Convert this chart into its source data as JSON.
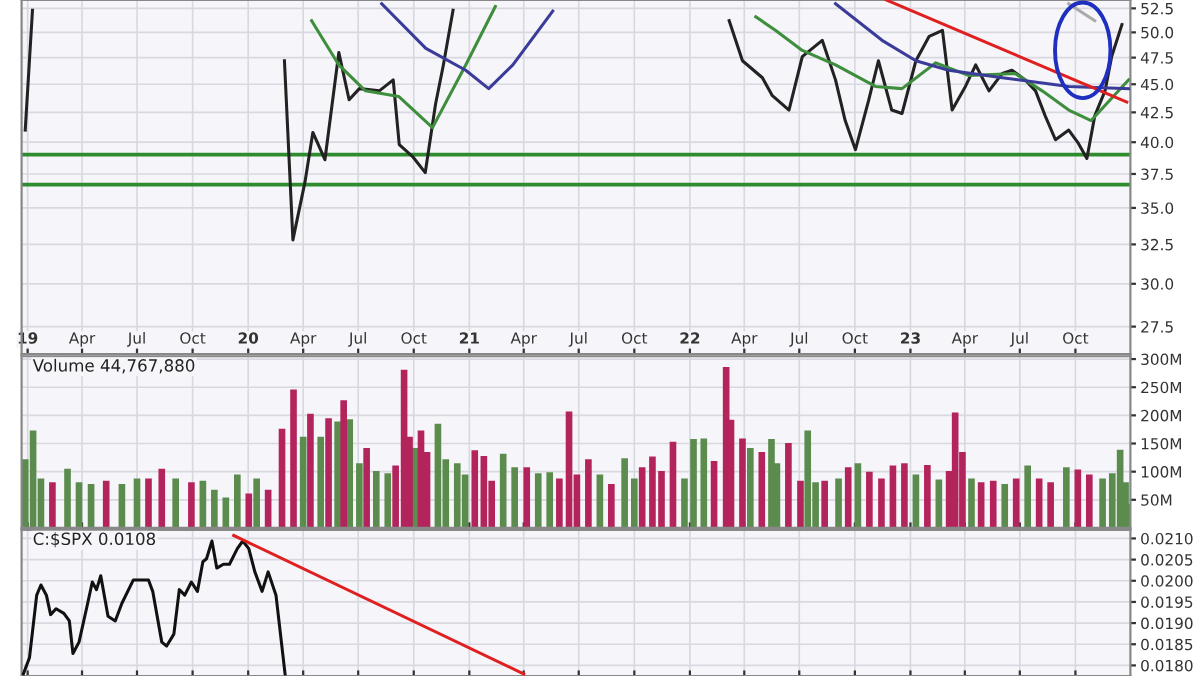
{
  "chart_data": [
    {
      "type": "line",
      "log": "y",
      "grid": true,
      "xlim": [
        "2018-12-22",
        "2023-12-31"
      ],
      "ylim": [
        26.0,
        53.4
      ],
      "xticks": [
        {
          "value": "2019-01-01",
          "label": "19"
        },
        {
          "value": "2019-04-01",
          "label": "Apr"
        },
        {
          "value": "2019-07-01",
          "label": "Jul"
        },
        {
          "value": "2019-10-01",
          "label": "Oct"
        },
        {
          "value": "2020-01-01",
          "label": "20"
        },
        {
          "value": "2020-04-01",
          "label": "Apr"
        },
        {
          "value": "2020-07-01",
          "label": "Jul"
        },
        {
          "value": "2020-10-01",
          "label": "Oct"
        },
        {
          "value": "2021-01-01",
          "label": "21"
        },
        {
          "value": "2021-04-01",
          "label": "Apr"
        },
        {
          "value": "2021-07-01",
          "label": "Jul"
        },
        {
          "value": "2021-10-01",
          "label": "Oct"
        },
        {
          "value": "2022-01-01",
          "label": "22"
        },
        {
          "value": "2022-04-01",
          "label": "Apr"
        },
        {
          "value": "2022-07-01",
          "label": "Jul"
        },
        {
          "value": "2022-10-01",
          "label": "Oct"
        },
        {
          "value": "2023-01-01",
          "label": "23"
        },
        {
          "value": "2023-04-01",
          "label": "Apr"
        },
        {
          "value": "2023-07-01",
          "label": "Jul"
        },
        {
          "value": "2023-10-01",
          "label": "Oct"
        }
      ],
      "yticks": [
        {
          "value": 27.5,
          "label": "27.5"
        },
        {
          "value": 30,
          "label": "30.0"
        },
        {
          "value": 32.5,
          "label": "32.5"
        },
        {
          "value": 35,
          "label": "35.0"
        },
        {
          "value": 37.5,
          "label": "37.5"
        },
        {
          "value": 40,
          "label": "40.0"
        },
        {
          "value": 42.5,
          "label": "42.5"
        },
        {
          "value": 45,
          "label": "45.0"
        },
        {
          "value": 47.5,
          "label": "47.5"
        },
        {
          "value": 50,
          "label": "50.0"
        },
        {
          "value": 52.5,
          "label": "52.5"
        }
      ],
      "ref_lines": [
        {
          "axis": "y",
          "value": 39.0,
          "color": "#2e8b2e"
        },
        {
          "axis": "y",
          "value": 36.7,
          "color": "#2e8b2e"
        }
      ],
      "series": [
        {
          "color": "#222222",
          "x": [
            "2018-12-28",
            "2019-01-09",
            "2019-02-01",
            "2020-03-01",
            "2020-03-15",
            "2020-04-04",
            "2020-04-17",
            "2020-05-07",
            "2020-05-30",
            "2020-06-16",
            "2020-07-03",
            "2020-08-05",
            "2020-08-28",
            "2020-09-07",
            "2020-09-30",
            "2020-10-20",
            "2020-11-06",
            "2020-11-19",
            "2020-12-05",
            "2020-12-20",
            "2022-03-07",
            "2022-03-29",
            "2022-05-01",
            "2022-05-17",
            "2022-06-14",
            "2022-07-06",
            "2022-08-08",
            "2022-08-30",
            "2022-09-15",
            "2022-10-02",
            "2022-10-24",
            "2022-11-09",
            "2022-12-01",
            "2022-12-18",
            "2023-01-10",
            "2023-02-01",
            "2023-02-23",
            "2023-03-11",
            "2023-04-02",
            "2023-04-19",
            "2023-05-11",
            "2023-06-02",
            "2023-06-18",
            "2023-07-10",
            "2023-07-27",
            "2023-08-12",
            "2023-08-29",
            "2023-09-20",
            "2023-10-06",
            "2023-10-20",
            "2023-11-02",
            "2023-11-19",
            "2023-11-30",
            "2023-12-17"
          ],
          "values": [
            41.0,
            52.3,
            null,
            47.2,
            32.8,
            36.9,
            40.8,
            38.6,
            48.0,
            43.6,
            44.6,
            44.4,
            45.4,
            39.8,
            38.8,
            37.6,
            43.2,
            46.8,
            52.3,
            null,
            51.2,
            47.2,
            45.6,
            44.0,
            42.7,
            47.6,
            49.2,
            45.4,
            41.8,
            39.4,
            43.6,
            47.2,
            42.7,
            42.4,
            47.2,
            49.6,
            50.2,
            42.7,
            44.8,
            46.8,
            44.4,
            46.0,
            46.3,
            45.4,
            44.4,
            42.2,
            40.2,
            41.0,
            39.9,
            38.7,
            42.2,
            44.4,
            47.6,
            50.8
          ]
        },
        {
          "color": "#3e8e3e",
          "x": [
            "2020-04-15",
            "2020-05-30",
            "2020-07-13",
            "2020-09-06",
            "2020-11-01",
            "2020-12-26",
            "2021-02-13",
            "2021-03-01",
            "2022-04-20",
            "2022-05-23",
            "2022-07-06",
            "2022-08-30",
            "2022-11-04",
            "2022-12-18",
            "2023-02-12",
            "2023-04-08",
            "2023-06-23",
            "2023-08-07",
            "2023-09-20",
            "2023-10-27",
            "2023-12-28"
          ],
          "values": [
            51.2,
            46.8,
            44.4,
            43.9,
            41.2,
            46.8,
            52.7,
            null,
            51.6,
            50.2,
            48.2,
            46.8,
            44.8,
            44.6,
            47.0,
            45.8,
            46.0,
            44.4,
            42.7,
            41.8,
            45.4
          ]
        },
        {
          "color": "#3b3b9a",
          "x": [
            "2020-08-09",
            "2020-10-21",
            "2020-12-26",
            "2021-02-02",
            "2021-03-14",
            "2021-05-19",
            "2021-06-01",
            "2022-08-30",
            "2022-11-15",
            "2023-01-10",
            "2023-03-05",
            "2023-06-02",
            "2023-09-20",
            "2023-12-28"
          ],
          "values": [
            53.0,
            48.4,
            46.3,
            44.6,
            46.8,
            52.2,
            null,
            53.0,
            49.2,
            47.2,
            46.3,
            45.6,
            44.8,
            44.6
          ]
        },
        {
          "color": "#aaaaaa",
          "x": [
            "2023-09-20",
            "2023-11-02"
          ],
          "values": [
            53.0,
            51.2
          ]
        },
        {
          "color": "#e02020",
          "x": [
            "2022-11-22",
            "2023-12-25"
          ],
          "values": [
            53.4,
            43.4
          ]
        }
      ]
    },
    {
      "type": "bar",
      "grid": true,
      "tick_labels": "y",
      "xlim": [
        "2018-12-22",
        "2023-12-31"
      ],
      "ylim": [
        0,
        305
      ],
      "xticks": [
        {
          "value": "2019-01-01",
          "label": null
        },
        {
          "value": "2019-04-01",
          "label": null
        },
        {
          "value": "2019-07-01",
          "label": null
        },
        {
          "value": "2019-10-01",
          "label": null
        },
        {
          "value": "2020-01-01",
          "label": null
        },
        {
          "value": "2020-04-01",
          "label": null
        },
        {
          "value": "2020-07-01",
          "label": null
        },
        {
          "value": "2020-10-01",
          "label": null
        },
        {
          "value": "2021-01-01",
          "label": null
        },
        {
          "value": "2021-04-01",
          "label": null
        },
        {
          "value": "2021-07-01",
          "label": null
        },
        {
          "value": "2021-10-01",
          "label": null
        },
        {
          "value": "2022-01-01",
          "label": null
        },
        {
          "value": "2022-04-01",
          "label": null
        },
        {
          "value": "2022-07-01",
          "label": null
        },
        {
          "value": "2022-10-01",
          "label": null
        },
        {
          "value": "2023-01-01",
          "label": null
        },
        {
          "value": "2023-04-01",
          "label": null
        },
        {
          "value": "2023-07-01",
          "label": null
        },
        {
          "value": "2023-10-01",
          "label": null
        }
      ],
      "yticks": [
        {
          "value": 50,
          "label": "50M"
        },
        {
          "value": 100,
          "label": "100M"
        },
        {
          "value": 150,
          "label": "150M"
        },
        {
          "value": 200,
          "label": "200M"
        },
        {
          "value": 250,
          "label": "250M"
        },
        {
          "value": 300,
          "label": "300M"
        }
      ],
      "annotations": [
        "Volume 44,767,880"
      ],
      "series": [
        {
          "color": "#5b8c4e",
          "x": [
            "2018-12-28",
            "2019-01-10",
            "2019-01-23",
            "2019-03-08",
            "2019-03-27",
            "2019-04-16",
            "2019-06-06",
            "2019-07-01",
            "2019-09-03",
            "2019-10-18",
            "2019-11-06",
            "2019-11-25",
            "2019-12-14",
            "2020-01-15",
            "2020-04-01",
            "2020-04-30",
            "2020-05-28",
            "2020-06-17",
            "2020-07-03",
            "2020-07-31",
            "2020-08-19",
            "2020-10-03",
            "2020-11-10",
            "2020-11-23",
            "2020-12-12",
            "2020-12-25",
            "2021-02-26",
            "2021-03-17",
            "2021-04-25",
            "2021-05-14",
            "2021-08-05",
            "2021-09-15",
            "2021-10-01",
            "2021-12-23",
            "2022-01-07",
            "2022-01-24",
            "2022-04-11",
            "2022-05-16",
            "2022-05-25",
            "2022-07-15",
            "2022-07-28",
            "2022-09-04",
            "2022-10-06",
            "2023-01-10",
            "2023-02-17",
            "2023-04-12",
            "2023-06-06",
            "2023-07-14",
            "2023-09-16",
            "2023-11-15",
            "2023-12-01",
            "2023-12-14",
            "2023-12-23",
            "2023-12-29"
          ],
          "values": [
            122,
            173,
            88,
            105,
            81,
            78,
            78,
            88,
            88,
            84,
            68,
            54,
            95,
            88,
            162,
            162,
            189,
            193,
            115,
            101,
            97,
            142,
            185,
            122,
            115,
            95,
            132,
            108,
            97,
            99,
            95,
            124,
            88,
            88,
            158,
            159,
            142,
            158,
            115,
            173,
            81,
            88,
            115,
            95,
            86,
            88,
            78,
            111,
            108,
            88,
            97,
            139,
            81,
            43
          ]
        },
        {
          "color": "#b3245c",
          "x": [
            "2019-02-11",
            "2019-05-11",
            "2019-07-20",
            "2019-08-11",
            "2019-09-29",
            "2020-01-02",
            "2020-02-03",
            "2020-02-26",
            "2020-03-16",
            "2020-04-13",
            "2020-05-13",
            "2020-06-07",
            "2020-07-15",
            "2020-09-01",
            "2020-09-15",
            "2020-09-24",
            "2020-10-13",
            "2020-10-23",
            "2021-01-10",
            "2021-01-25",
            "2021-02-07",
            "2021-04-06",
            "2021-05-30",
            "2021-06-15",
            "2021-06-28",
            "2021-07-17",
            "2021-08-24",
            "2021-10-14",
            "2021-10-31",
            "2021-11-15",
            "2021-12-04",
            "2022-02-10",
            "2022-03-02",
            "2022-03-10",
            "2022-03-29",
            "2022-04-30",
            "2022-06-13",
            "2022-07-03",
            "2022-08-12",
            "2022-09-20",
            "2022-10-25",
            "2022-11-14",
            "2022-12-03",
            "2022-12-22",
            "2023-01-29",
            "2023-03-06",
            "2023-03-16",
            "2023-03-28",
            "2023-04-28",
            "2023-05-18",
            "2023-06-25",
            "2023-08-02",
            "2023-08-21",
            "2023-10-05",
            "2023-10-24"
          ],
          "values": [
            81,
            84,
            88,
            105,
            81,
            61,
            68,
            176,
            246,
            203,
            195,
            227,
            142,
            111,
            281,
            162,
            173,
            135,
            138,
            128,
            84,
            108,
            88,
            207,
            95,
            122,
            78,
            108,
            127,
            101,
            153,
            119,
            286,
            192,
            159,
            135,
            151,
            84,
            84,
            108,
            100,
            88,
            111,
            115,
            112,
            101,
            205,
            135,
            81,
            84,
            88,
            88,
            81,
            104,
            95
          ]
        }
      ]
    },
    {
      "type": "line",
      "grid": true,
      "tick_labels": "y",
      "xlim": [
        "2018-12-22",
        "2023-12-31"
      ],
      "ylim": [
        0.01775,
        0.0212
      ],
      "xticks": [
        {
          "value": "2019-01-01",
          "label": null
        },
        {
          "value": "2019-04-01",
          "label": null
        },
        {
          "value": "2019-07-01",
          "label": null
        },
        {
          "value": "2019-10-01",
          "label": null
        },
        {
          "value": "2020-01-01",
          "label": null
        },
        {
          "value": "2020-04-01",
          "label": null
        },
        {
          "value": "2020-07-01",
          "label": null
        },
        {
          "value": "2020-10-01",
          "label": null
        },
        {
          "value": "2021-01-01",
          "label": null
        },
        {
          "value": "2021-04-01",
          "label": null
        },
        {
          "value": "2021-07-01",
          "label": null
        },
        {
          "value": "2021-10-01",
          "label": null
        },
        {
          "value": "2022-01-01",
          "label": null
        },
        {
          "value": "2022-04-01",
          "label": null
        },
        {
          "value": "2022-07-01",
          "label": null
        },
        {
          "value": "2022-10-01",
          "label": null
        },
        {
          "value": "2023-01-01",
          "label": null
        },
        {
          "value": "2023-04-01",
          "label": null
        },
        {
          "value": "2023-07-01",
          "label": null
        },
        {
          "value": "2023-10-01",
          "label": null
        }
      ],
      "yticks": [
        {
          "value": 0.018,
          "label": "0.0180"
        },
        {
          "value": 0.0185,
          "label": "0.0185"
        },
        {
          "value": 0.019,
          "label": "0.0190"
        },
        {
          "value": 0.0195,
          "label": "0.0195"
        },
        {
          "value": 0.02,
          "label": "0.0200"
        },
        {
          "value": 0.0205,
          "label": "0.0205"
        },
        {
          "value": 0.021,
          "label": "0.0210"
        }
      ],
      "annotations": [
        "C:$SPX 0.0108"
      ],
      "series": [
        {
          "color": "#111111",
          "x": [
            "2018-12-25",
            "2019-01-04",
            "2019-01-16",
            "2019-01-23",
            "2019-02-01",
            "2019-02-08",
            "2019-02-17",
            "2019-03-02",
            "2019-03-11",
            "2019-03-17",
            "2019-03-27",
            "2019-04-09",
            "2019-04-18",
            "2019-04-25",
            "2019-05-02",
            "2019-05-14",
            "2019-05-26",
            "2019-06-06",
            "2019-06-25",
            "2019-07-20",
            "2019-07-27",
            "2019-08-11",
            "2019-08-19",
            "2019-08-31",
            "2019-09-09",
            "2019-09-18",
            "2019-09-29",
            "2019-10-09",
            "2019-10-18",
            "2019-10-24",
            "2019-11-02",
            "2019-11-10",
            "2019-11-21",
            "2019-12-01",
            "2019-12-14",
            "2019-12-23",
            "2020-01-02",
            "2020-01-12",
            "2020-01-24",
            "2020-02-03",
            "2020-02-16",
            "2020-03-02"
          ],
          "values": [
            0.0178,
            0.01818,
            0.01966,
            0.0199,
            0.01966,
            0.0192,
            0.01934,
            0.01923,
            0.01905,
            0.01828,
            0.01855,
            0.01938,
            0.01997,
            0.01979,
            0.02012,
            0.01916,
            0.01905,
            0.01947,
            0.02002,
            0.02002,
            0.01975,
            0.01855,
            0.01846,
            0.01874,
            0.01979,
            0.01966,
            0.01997,
            0.01975,
            0.02045,
            0.02052,
            0.02094,
            0.0203,
            0.02039,
            0.02039,
            0.02076,
            0.02094,
            0.02076,
            0.02021,
            0.01975,
            0.02021,
            0.01966,
            0.0178
          ]
        },
        {
          "color": "#e02020",
          "x": [
            "2019-12-08",
            "2021-04-01"
          ],
          "values": [
            0.02107,
            0.0178
          ]
        }
      ]
    }
  ]
}
